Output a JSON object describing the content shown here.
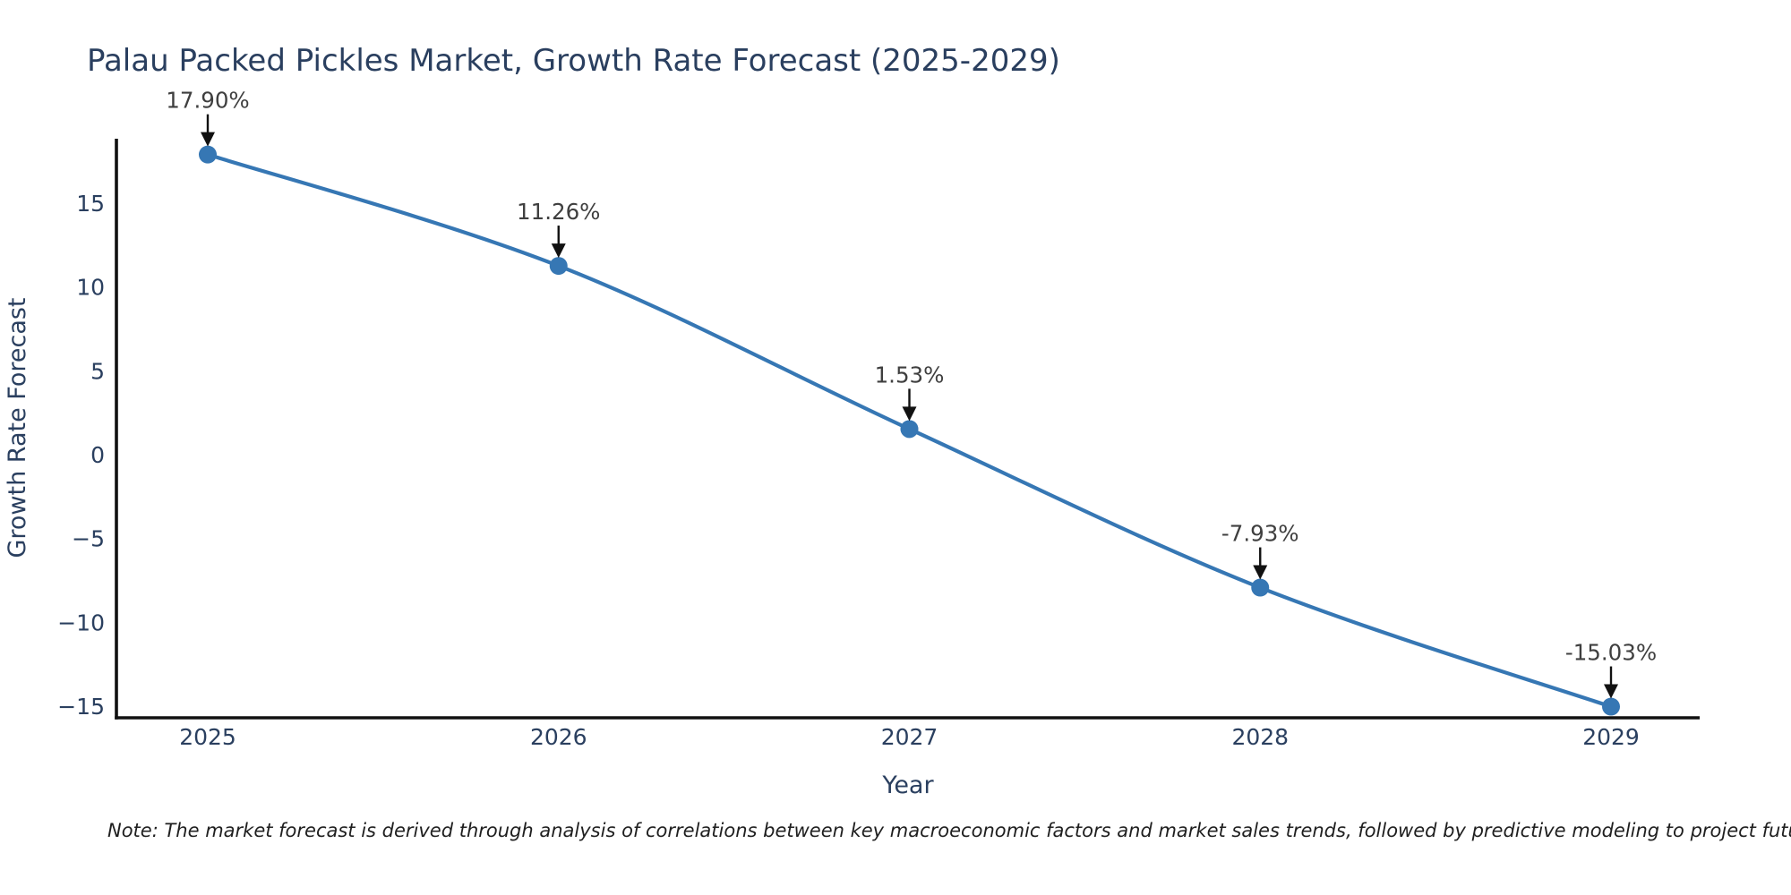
{
  "chart_data": {
    "type": "line",
    "title": "Palau Packed Pickles Market, Growth Rate Forecast (2025-2029)",
    "xlabel": "Year",
    "ylabel": "Growth Rate Forecast",
    "x": [
      2025,
      2026,
      2027,
      2028,
      2029
    ],
    "series": [
      {
        "name": "Growth Rate Forecast",
        "values": [
          17.9,
          11.26,
          1.53,
          -7.93,
          -15.03
        ],
        "point_labels": [
          "17.90%",
          "11.26%",
          "1.53%",
          "-7.93%",
          "-15.03%"
        ]
      }
    ],
    "x_tick_labels": [
      "2025",
      "2026",
      "2027",
      "2028",
      "2029"
    ],
    "y_ticks": [
      {
        "v": 15,
        "label": "15"
      },
      {
        "v": 10,
        "label": "10"
      },
      {
        "v": 5,
        "label": "5"
      },
      {
        "v": 0,
        "label": "0"
      },
      {
        "v": -5,
        "label": "−5"
      },
      {
        "v": -10,
        "label": "−10"
      },
      {
        "v": -15,
        "label": "−15"
      }
    ],
    "ylim": [
      -15.8,
      18.9
    ],
    "grid": false,
    "legend_position": "none",
    "line_shape": "spline",
    "annotation_arrows": true,
    "colors": {
      "line": "#3677b4",
      "marker": "#3677b4",
      "axis": "#111111",
      "axis_text": "#2a3f5f",
      "annotation_text": "#3f3f3f",
      "arrow": "#111111"
    }
  },
  "note": {
    "text": "Note: The market forecast is derived through analysis of correlations between key macroeconomic factors and market sales trends, followed by predictive modeling to project future sales"
  }
}
